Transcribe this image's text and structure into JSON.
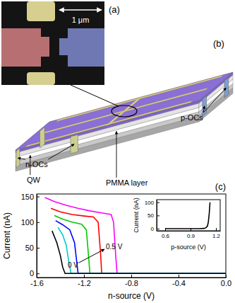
{
  "figure": {
    "panel_a": {
      "label": "(a)",
      "scale_bar": "1 μm"
    },
    "panel_b": {
      "label": "(b)",
      "labels": [
        "n-OCs",
        "QW",
        "PMMA layer",
        "p-OCs"
      ]
    }
  },
  "chart_data": [
    {
      "type": "line",
      "title": "(c)",
      "x_label": "n-source (V)",
      "y_label": "Current (nA)",
      "xlim": [
        -1.6,
        0
      ],
      "xticks": [
        -1.6,
        -1.2,
        -0.8,
        -0.4,
        {
          "value": 0,
          "label": "0.0"
        }
      ],
      "ylim": [
        -8,
        155
      ],
      "yticks": [
        0,
        50,
        100,
        150
      ],
      "annotations": [
        "0 V",
        "0.5 V"
      ],
      "series": [
        {
          "color": "#ff00ff",
          "x": [
            -1.53,
            -1.45,
            -1.35,
            -1.25,
            -1.15,
            -1.05,
            -0.97,
            -0.95,
            -0.93,
            -0.92,
            0
          ],
          "values": [
            148,
            140,
            133,
            127,
            122,
            118,
            115,
            100,
            30,
            0,
            0
          ]
        },
        {
          "color": "#ff0000",
          "x": [
            -1.48,
            -1.4,
            -1.3,
            -1.2,
            -1.12,
            -1.08,
            -1.06,
            -1.05,
            0
          ],
          "values": [
            127,
            120,
            115,
            112,
            110,
            100,
            40,
            0,
            0
          ]
        },
        {
          "color": "#00cc00",
          "x": [
            -1.45,
            -1.38,
            -1.3,
            -1.22,
            -1.18,
            -1.16,
            -1.15,
            0
          ],
          "values": [
            113,
            106,
            100,
            96,
            85,
            30,
            0,
            0
          ]
        },
        {
          "color": "#0000ff",
          "x": [
            -1.44,
            -1.38,
            -1.32,
            -1.28,
            -1.26,
            -1.25,
            0
          ],
          "values": [
            103,
            95,
            85,
            60,
            20,
            0,
            0
          ]
        },
        {
          "color": "#00cccc",
          "x": [
            -1.42,
            -1.38,
            -1.35,
            -1.33,
            -1.31,
            0
          ],
          "values": [
            90,
            75,
            55,
            25,
            0,
            0
          ]
        },
        {
          "color": "#000000",
          "x": [
            -1.47,
            -1.43,
            -1.4,
            -1.38,
            -1.36,
            0
          ],
          "values": [
            83,
            60,
            35,
            12,
            0,
            0
          ]
        }
      ]
    },
    {
      "type": "line",
      "x_label": "p-source (V)",
      "y_label": "Current (nA)",
      "xlim": [
        0.5,
        1.25
      ],
      "xticks": [
        0.6,
        0.9,
        1.2
      ],
      "ylim": [
        -8,
        110
      ],
      "yticks": [
        0,
        50,
        100
      ],
      "series": [
        {
          "color": "#000000",
          "x": [
            0.6,
            0.8,
            1.0,
            1.06,
            1.08,
            1.1,
            1.11,
            1.12,
            1.13
          ],
          "values": [
            0,
            0,
            0,
            1,
            3,
            10,
            25,
            55,
            100
          ]
        }
      ]
    }
  ]
}
